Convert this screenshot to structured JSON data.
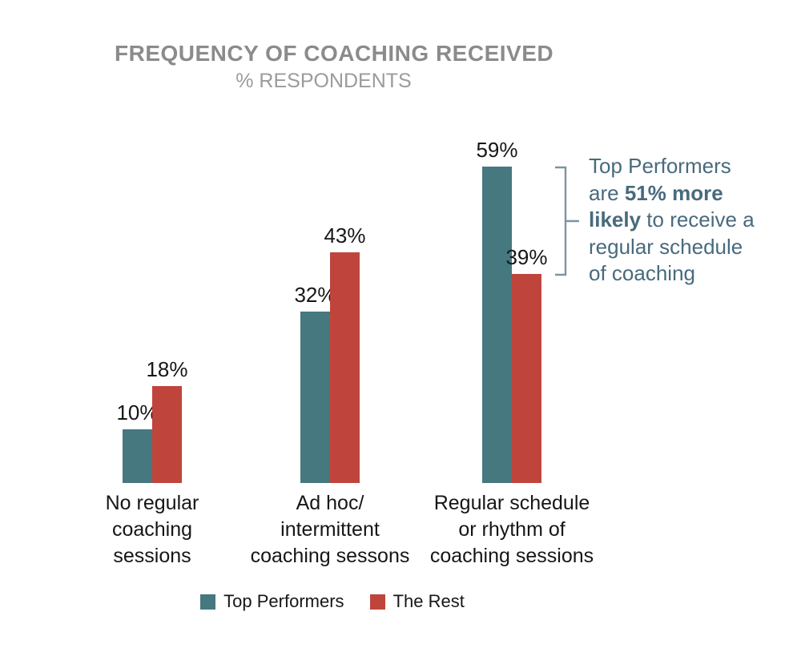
{
  "chart_data": {
    "type": "bar",
    "title": "FREQUENCY OF COACHING RECEIVED",
    "subtitle": "% RESPONDENTS",
    "categories": [
      "No regular\ncoaching\nsessions",
      "Ad hoc/\nintermittent\ncoaching sessons",
      "Regular schedule\nor rhythm of\ncoaching sessions"
    ],
    "series": [
      {
        "name": "Top Performers",
        "color": "#46787f",
        "values": [
          10,
          32,
          59
        ]
      },
      {
        "name": "The Rest",
        "color": "#bf453c",
        "values": [
          18,
          43,
          39
        ]
      }
    ],
    "value_label_suffix": "%",
    "xlabel": "",
    "ylabel": "",
    "ylim": [
      0,
      62
    ],
    "grid": false,
    "axes_visible": false,
    "legend_position": "bottom"
  },
  "annotation": {
    "text": "Top Performers are 51% more likely to receive a regular schedule of coaching",
    "color": "#486a7d",
    "bracket_color": "#7e93a0",
    "lines": [
      {
        "segments": [
          {
            "text": "Top Performers",
            "bold": false
          }
        ]
      },
      {
        "segments": [
          {
            "text": "are ",
            "bold": false
          },
          {
            "text": "51% more",
            "bold": true
          }
        ]
      },
      {
        "segments": [
          {
            "text": "likely",
            "bold": true
          },
          {
            "text": " to receive a",
            "bold": false
          }
        ]
      },
      {
        "segments": [
          {
            "text": "regular schedule",
            "bold": false
          }
        ]
      },
      {
        "segments": [
          {
            "text": "of coaching",
            "bold": false
          }
        ]
      }
    ]
  },
  "colors": {
    "title": "#8b8b8b",
    "subtitle": "#9b9b9b",
    "labels": "#161616",
    "background": "#ffffff"
  }
}
